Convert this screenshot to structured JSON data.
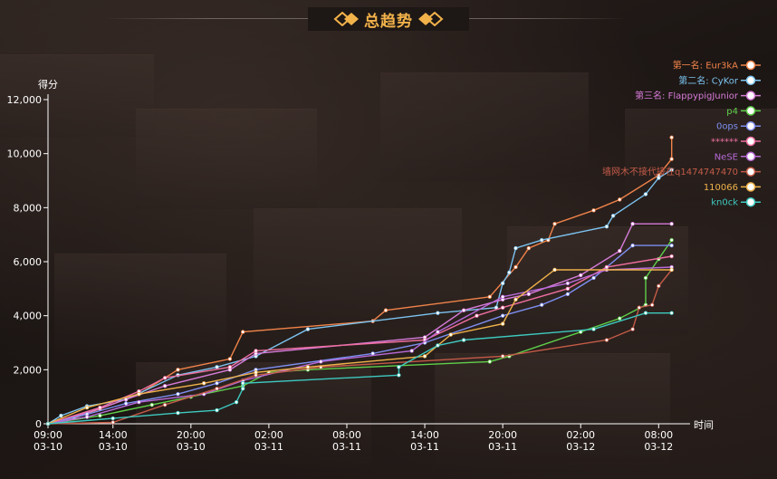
{
  "page": {
    "title": "总趋势"
  },
  "chart_data": {
    "type": "line",
    "title": "总趋势",
    "ylabel": "得分",
    "xlabel": "时间",
    "ylim": [
      0,
      12000
    ],
    "yticks": [
      0,
      2000,
      4000,
      6000,
      8000,
      10000,
      12000
    ],
    "ytick_labels": [
      "0",
      "2,000",
      "4,000",
      "6,000",
      "8,000",
      "10,000",
      "12,000"
    ],
    "xlim": [
      "03-10 09:00",
      "03-12 10:00"
    ],
    "xticks": [
      {
        "time": "03-10 09:00",
        "label1": "09:00",
        "label2": "03-10"
      },
      {
        "time": "03-10 14:00",
        "label1": "14:00",
        "label2": "03-10"
      },
      {
        "time": "03-10 20:00",
        "label1": "20:00",
        "label2": "03-10"
      },
      {
        "time": "03-11 02:00",
        "label1": "02:00",
        "label2": "03-11"
      },
      {
        "time": "03-11 08:00",
        "label1": "08:00",
        "label2": "03-11"
      },
      {
        "time": "03-11 14:00",
        "label1": "14:00",
        "label2": "03-11"
      },
      {
        "time": "03-11 20:00",
        "label1": "20:00",
        "label2": "03-11"
      },
      {
        "time": "03-12 02:00",
        "label1": "02:00",
        "label2": "03-12"
      },
      {
        "time": "03-12 08:00",
        "label1": "08:00",
        "label2": "03-12"
      }
    ],
    "grid": false,
    "legend_position": "top-right",
    "series": [
      {
        "name": "第一名: Eur3kA",
        "color": "#f0834a",
        "points": [
          [
            "03-10 09:00",
            0
          ],
          [
            "03-10 11:00",
            200
          ],
          [
            "03-10 13:00",
            550
          ],
          [
            "03-10 16:00",
            1100
          ],
          [
            "03-10 19:00",
            2000
          ],
          [
            "03-10 23:00",
            2400
          ],
          [
            "03-11 00:00",
            3400
          ],
          [
            "03-11 10:00",
            3800
          ],
          [
            "03-11 11:00",
            4200
          ],
          [
            "03-11 19:00",
            4700
          ],
          [
            "03-11 21:00",
            5800
          ],
          [
            "03-11 22:00",
            6500
          ],
          [
            "03-11 23:30",
            6800
          ],
          [
            "03-12 00:00",
            7400
          ],
          [
            "03-12 03:00",
            7900
          ],
          [
            "03-12 05:00",
            8300
          ],
          [
            "03-12 08:00",
            9200
          ],
          [
            "03-12 09:00",
            9800
          ],
          [
            "03-12 09:00",
            10600
          ]
        ]
      },
      {
        "name": "第二名: CyKor",
        "color": "#7cc3f0",
        "points": [
          [
            "03-10 09:00",
            0
          ],
          [
            "03-10 10:00",
            300
          ],
          [
            "03-10 12:00",
            650
          ],
          [
            "03-10 15:00",
            900
          ],
          [
            "03-10 19:00",
            1800
          ],
          [
            "03-10 22:00",
            2100
          ],
          [
            "03-11 01:00",
            2500
          ],
          [
            "03-11 05:00",
            3500
          ],
          [
            "03-11 15:00",
            4100
          ],
          [
            "03-11 19:30",
            4300
          ],
          [
            "03-11 20:00",
            5200
          ],
          [
            "03-11 20:30",
            5600
          ],
          [
            "03-11 21:00",
            6500
          ],
          [
            "03-11 23:00",
            6800
          ],
          [
            "03-12 04:00",
            7300
          ],
          [
            "03-12 04:30",
            7700
          ],
          [
            "03-12 07:00",
            8500
          ],
          [
            "03-12 08:00",
            9100
          ],
          [
            "03-12 09:00",
            9400
          ]
        ]
      },
      {
        "name": "第三名: FlappypigJunior",
        "color": "#d67bd8",
        "points": [
          [
            "03-10 09:00",
            0
          ],
          [
            "03-10 12:00",
            400
          ],
          [
            "03-10 15:00",
            900
          ],
          [
            "03-10 18:00",
            1400
          ],
          [
            "03-10 23:00",
            2000
          ],
          [
            "03-11 01:00",
            2600
          ],
          [
            "03-11 14:00",
            3200
          ],
          [
            "03-11 17:00",
            4200
          ],
          [
            "03-11 20:00",
            4600
          ],
          [
            "03-11 22:00",
            4800
          ],
          [
            "03-12 02:00",
            5500
          ],
          [
            "03-12 05:00",
            6400
          ],
          [
            "03-12 06:00",
            7400
          ],
          [
            "03-12 09:00",
            7400
          ]
        ]
      },
      {
        "name": "p4",
        "color": "#5fd04a",
        "points": [
          [
            "03-10 09:00",
            0
          ],
          [
            "03-10 13:00",
            300
          ],
          [
            "03-10 17:00",
            700
          ],
          [
            "03-10 20:00",
            1000
          ],
          [
            "03-11 00:00",
            1400
          ],
          [
            "03-11 02:00",
            1900
          ],
          [
            "03-11 05:00",
            2000
          ],
          [
            "03-11 19:00",
            2300
          ],
          [
            "03-11 20:30",
            2500
          ],
          [
            "03-12 02:00",
            3400
          ],
          [
            "03-12 05:00",
            3900
          ],
          [
            "03-12 07:00",
            4400
          ],
          [
            "03-12 07:00",
            5400
          ],
          [
            "03-12 08:00",
            6100
          ],
          [
            "03-12 09:00",
            6800
          ]
        ]
      },
      {
        "name": "0ops",
        "color": "#7d8ef0",
        "points": [
          [
            "03-10 09:00",
            0
          ],
          [
            "03-10 12:00",
            350
          ],
          [
            "03-10 15:00",
            750
          ],
          [
            "03-10 19:00",
            1100
          ],
          [
            "03-10 22:00",
            1500
          ],
          [
            "03-11 01:00",
            2000
          ],
          [
            "03-11 10:00",
            2600
          ],
          [
            "03-11 14:00",
            3000
          ],
          [
            "03-11 20:00",
            4000
          ],
          [
            "03-11 23:00",
            4400
          ],
          [
            "03-12 01:00",
            4800
          ],
          [
            "03-12 03:00",
            5400
          ],
          [
            "03-12 06:00",
            6600
          ],
          [
            "03-12 09:00",
            6600
          ]
        ]
      },
      {
        "name": "******",
        "color": "#ee6ea0",
        "points": [
          [
            "03-10 09:00",
            0
          ],
          [
            "03-10 13:00",
            600
          ],
          [
            "03-10 16:00",
            1200
          ],
          [
            "03-10 18:00",
            1700
          ],
          [
            "03-10 23:00",
            2100
          ],
          [
            "03-11 01:00",
            2700
          ],
          [
            "03-11 14:00",
            3100
          ],
          [
            "03-11 18:00",
            4000
          ],
          [
            "03-11 20:00",
            4300
          ],
          [
            "03-12 01:00",
            5000
          ],
          [
            "03-12 04:00",
            5800
          ],
          [
            "03-12 09:00",
            6200
          ]
        ]
      },
      {
        "name": "NeSE",
        "color": "#b86ad8",
        "points": [
          [
            "03-10 09:00",
            0
          ],
          [
            "03-10 12:00",
            250
          ],
          [
            "03-10 16:00",
            800
          ],
          [
            "03-10 21:00",
            1100
          ],
          [
            "03-11 00:00",
            1600
          ],
          [
            "03-11 06:00",
            2300
          ],
          [
            "03-11 13:00",
            2700
          ],
          [
            "03-11 15:00",
            3400
          ],
          [
            "03-11 20:00",
            4700
          ],
          [
            "03-12 01:00",
            5200
          ],
          [
            "03-12 04:00",
            5700
          ],
          [
            "03-12 09:00",
            5800
          ]
        ]
      },
      {
        "name": "墙网木不接代接在q1474747470",
        "color": "#c45b48",
        "points": [
          [
            "03-10 09:00",
            0
          ],
          [
            "03-10 14:00",
            50
          ],
          [
            "03-10 18:00",
            700
          ],
          [
            "03-10 22:00",
            1300
          ],
          [
            "03-11 01:00",
            1800
          ],
          [
            "03-11 06:00",
            2100
          ],
          [
            "03-11 20:00",
            2500
          ],
          [
            "03-12 04:00",
            3100
          ],
          [
            "03-12 06:00",
            3500
          ],
          [
            "03-12 06:30",
            4300
          ],
          [
            "03-12 07:30",
            4400
          ],
          [
            "03-12 08:00",
            5100
          ],
          [
            "03-12 09:00",
            5700
          ]
        ]
      },
      {
        "name": "110066",
        "color": "#f0b24a",
        "points": [
          [
            "03-10 09:00",
            0
          ],
          [
            "03-10 12:00",
            600
          ],
          [
            "03-10 16:00",
            1100
          ],
          [
            "03-10 21:00",
            1500
          ],
          [
            "03-11 01:00",
            1900
          ],
          [
            "03-11 05:00",
            2100
          ],
          [
            "03-11 14:00",
            2500
          ],
          [
            "03-11 16:00",
            3300
          ],
          [
            "03-11 20:00",
            3700
          ],
          [
            "03-11 21:00",
            4600
          ],
          [
            "03-12 00:00",
            5700
          ],
          [
            "03-12 09:00",
            5700
          ]
        ]
      },
      {
        "name": "kn0ck",
        "color": "#3ec9c0",
        "points": [
          [
            "03-10 09:00",
            0
          ],
          [
            "03-10 14:00",
            200
          ],
          [
            "03-10 19:00",
            400
          ],
          [
            "03-10 22:00",
            500
          ],
          [
            "03-10 23:30",
            800
          ],
          [
            "03-11 00:00",
            1300
          ],
          [
            "03-11 00:00",
            1500
          ],
          [
            "03-11 12:00",
            1800
          ],
          [
            "03-11 12:00",
            2100
          ],
          [
            "03-11 15:00",
            2900
          ],
          [
            "03-11 17:00",
            3100
          ],
          [
            "03-12 03:00",
            3500
          ],
          [
            "03-12 07:00",
            4100
          ],
          [
            "03-12 09:00",
            4100
          ]
        ]
      }
    ]
  }
}
